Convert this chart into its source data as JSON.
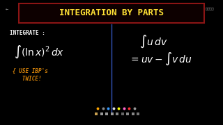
{
  "background_color": "#000000",
  "title_text": "INTEGRATION BY PARTS",
  "title_color": "#FFE135",
  "title_box_edgecolor": "#8B1515",
  "title_box_facecolor": "#0d0000",
  "left_label": "INTEGRATE :",
  "left_label_color": "#FFFFFF",
  "integral_color": "#FFFFFF",
  "ibp_color": "#D4820A",
  "divider_color": "#3355BB",
  "right_color": "#FFFFFF",
  "toolbar_dots": [
    "#FFA500",
    "#888888",
    "#3399FF",
    "#DDDDDD",
    "#FFFF00",
    "#FF66CC",
    "#FF3333",
    "#999999"
  ],
  "fig_width": 3.2,
  "fig_height": 1.8,
  "dpi": 100
}
